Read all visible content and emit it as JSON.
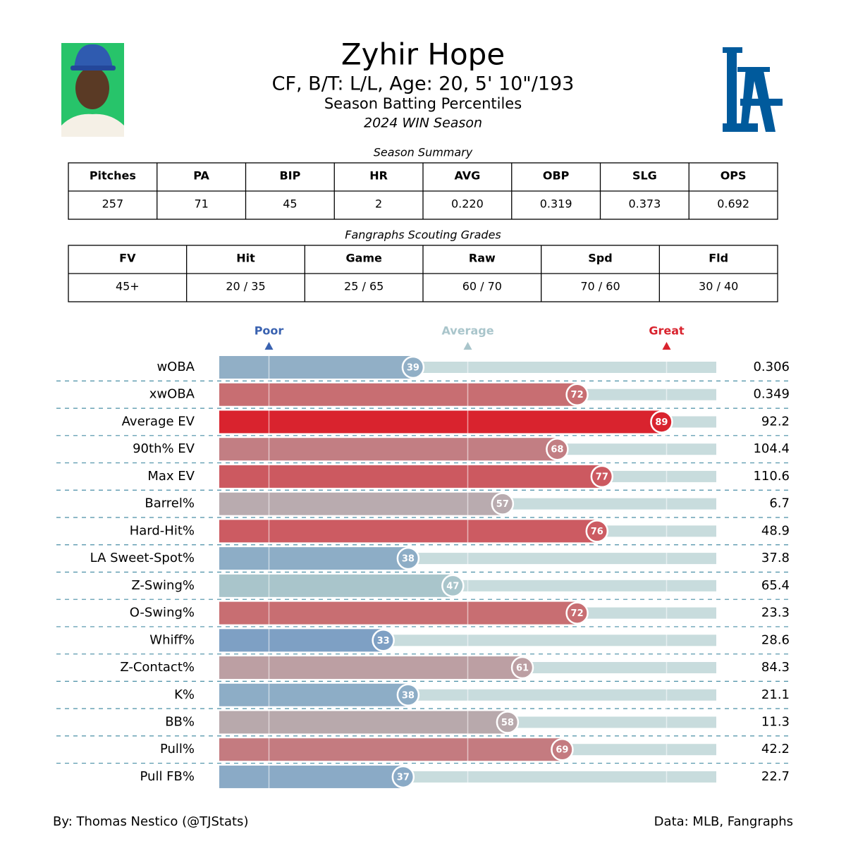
{
  "header": {
    "name": "Zyhir Hope",
    "bio": "CF, B/T: L/L, Age: 20, 5' 10\"/193",
    "subtitle": "Season Batting Percentiles",
    "season": "2024 WIN Season"
  },
  "summary": {
    "title": "Season Summary",
    "columns": [
      "Pitches",
      "PA",
      "BIP",
      "HR",
      "AVG",
      "OBP",
      "SLG",
      "OPS"
    ],
    "values": [
      "257",
      "71",
      "45",
      "2",
      "0.220",
      "0.319",
      "0.373",
      "0.692"
    ]
  },
  "grades": {
    "title": "Fangraphs Scouting Grades",
    "columns": [
      "FV",
      "Hit",
      "Game",
      "Raw",
      "Spd",
      "Fld"
    ],
    "values": [
      "45+",
      "20 / 35",
      "25 / 65",
      "60 / 70",
      "70 / 60",
      "30 / 40"
    ]
  },
  "chart_data": {
    "type": "percentile",
    "categories": [
      "wOBA",
      "xwOBA",
      "Average EV",
      "90th% EV",
      "Max EV",
      "Barrel%",
      "Hard-Hit%",
      "LA Sweet-Spot%",
      "Z-Swing%",
      "O-Swing%",
      "Whiff%",
      "Z-Contact%",
      "K%",
      "BB%",
      "Pull%",
      "Pull FB%"
    ],
    "values": [
      39,
      72,
      89,
      68,
      77,
      57,
      76,
      38,
      47,
      72,
      33,
      61,
      38,
      58,
      69,
      37
    ],
    "colors": [
      "#91afc6",
      "#c86e72",
      "#d9232e",
      "#c27e83",
      "#cc5960",
      "#b9abaf",
      "#cc5b62",
      "#8dadc6",
      "#a9c5cb",
      "#c86e72",
      "#7ea0c4",
      "#bc9fa3",
      "#8dadc6",
      "#b8a9ac",
      "#c47b80",
      "#8aaac6"
    ],
    "stats": [
      0.306,
      0.349,
      92.2,
      104.4,
      110.6,
      6.7,
      48.9,
      37.8,
      65.4,
      23.3,
      28.6,
      84.3,
      21.1,
      11.3,
      42.2,
      22.7
    ],
    "xlim": [
      0,
      100
    ],
    "track_color": "#c8dcdd",
    "benchmarks": [
      {
        "label": "Poor",
        "value": 10,
        "color": "#3a62b0"
      },
      {
        "label": "Average",
        "value": 50,
        "color": "#a9c5cb"
      },
      {
        "label": "Great",
        "value": 90,
        "color": "#d9232e"
      }
    ]
  },
  "footer": {
    "credit": "By: Thomas Nestico (@TJStats)",
    "source": "Data: MLB, Fangraphs"
  }
}
